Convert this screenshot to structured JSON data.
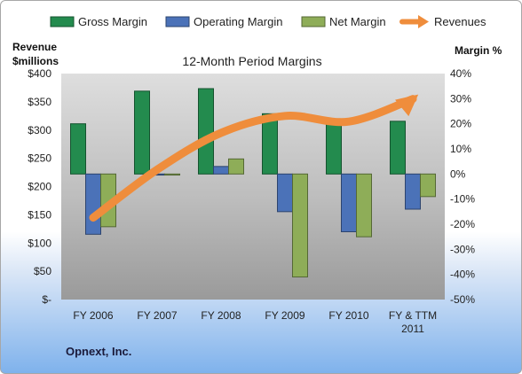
{
  "chart_data": {
    "type": "bar",
    "title": "12-Month Period Margins",
    "company": "Opnext, Inc.",
    "ylabel_left": [
      "Revenue",
      "$millions"
    ],
    "ylabel_right": "Margin %",
    "categories": [
      [
        "FY 2006"
      ],
      [
        "FY 2007"
      ],
      [
        "FY 2008"
      ],
      [
        "FY 2009"
      ],
      [
        "FY 2010"
      ],
      [
        "FY & TTM",
        "2011"
      ]
    ],
    "left_axis": {
      "min": 0,
      "max": 400,
      "step": 50,
      "tick_labels": [
        "$-",
        "$50",
        "$100",
        "$150",
        "$200",
        "$250",
        "$300",
        "$350",
        "$400"
      ]
    },
    "right_axis": {
      "min": -50,
      "max": 40,
      "step": 10,
      "tick_labels": [
        "-50%",
        "-40%",
        "-30%",
        "-20%",
        "-10%",
        "0%",
        "10%",
        "20%",
        "30%",
        "40%"
      ]
    },
    "series": [
      {
        "name": "Gross Margin",
        "axis": "right",
        "kind": "bar",
        "color": "#238b4e",
        "values": [
          20,
          33,
          34,
          24,
          21,
          21
        ]
      },
      {
        "name": "Operating Margin",
        "axis": "right",
        "kind": "bar",
        "color": "#4b72b8",
        "values": [
          -24,
          0,
          3,
          -15,
          -23,
          -14
        ]
      },
      {
        "name": "Net Margin",
        "axis": "right",
        "kind": "bar",
        "color": "#8ead58",
        "values": [
          -21,
          0,
          6,
          -41,
          -25,
          -9
        ]
      },
      {
        "name": "Revenues",
        "axis": "left",
        "kind": "line",
        "color": "#ef8d3c",
        "values": [
          145,
          230,
          295,
          325,
          315,
          355
        ]
      }
    ],
    "grid": false,
    "legend_position": "top"
  }
}
